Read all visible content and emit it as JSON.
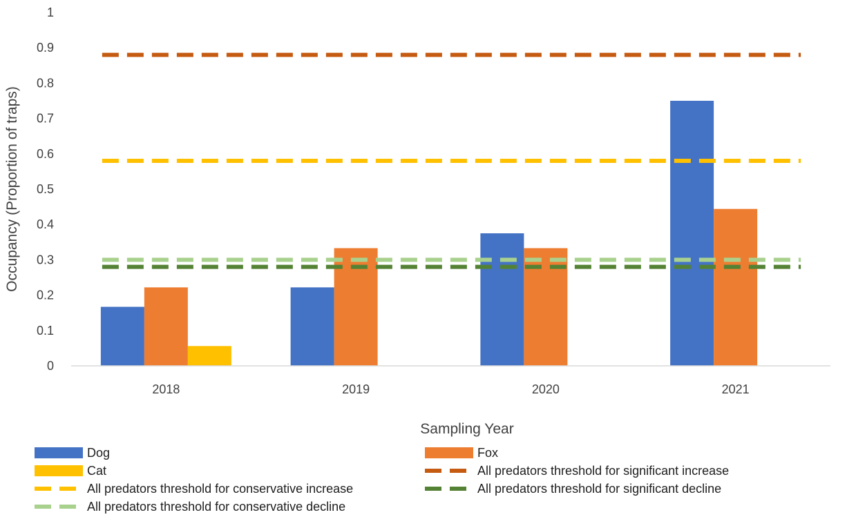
{
  "chart_data": {
    "type": "bar",
    "title": "",
    "xlabel": "Sampling Year",
    "ylabel": "Occupancy (Proportion of traps)",
    "ylim": [
      0,
      1
    ],
    "yticks": [
      "0",
      "0.1",
      "0.2",
      "0.3",
      "0.4",
      "0.5",
      "0.6",
      "0.7",
      "0.8",
      "0.9",
      "1"
    ],
    "grid": false,
    "categories": [
      "2018",
      "2019",
      "2020",
      "2021"
    ],
    "series": [
      {
        "name": "Dog",
        "color": "#4472C4",
        "values": [
          0.167,
          0.222,
          0.375,
          0.75
        ]
      },
      {
        "name": "Fox",
        "color": "#ED7D31",
        "values": [
          0.222,
          0.333,
          0.333,
          0.444
        ]
      },
      {
        "name": "Cat",
        "color": "#FFC000",
        "values": [
          0.056,
          0,
          0,
          0
        ]
      }
    ],
    "thresholds": [
      {
        "name": "All predators threshold for significant increase",
        "color": "#C55A11",
        "value": 0.88
      },
      {
        "name": "All predators threshold for conservative increase",
        "color": "#FFC000",
        "value": 0.58
      },
      {
        "name": "All predators threshold for significant decline",
        "color": "#548235",
        "value": 0.28
      },
      {
        "name": "All predators threshold for conservative decline",
        "color": "#A9D18E",
        "value": 0.3
      }
    ],
    "legend": {
      "position": "bottom",
      "entries": [
        {
          "label": "Dog",
          "kind": "bar",
          "color": "#4472C4"
        },
        {
          "label": "Fox",
          "kind": "bar",
          "color": "#ED7D31"
        },
        {
          "label": "Cat",
          "kind": "bar",
          "color": "#FFC000"
        },
        {
          "label": "All predators threshold for significant increase",
          "kind": "dashed",
          "color": "#C55A11"
        },
        {
          "label": "All predators threshold for conservative increase",
          "kind": "dashed",
          "color": "#FFC000"
        },
        {
          "label": "All predators threshold for significant decline",
          "kind": "dashed",
          "color": "#548235"
        },
        {
          "label": "All predators threshold for conservative decline",
          "kind": "dashed",
          "color": "#A9D18E"
        }
      ]
    }
  }
}
